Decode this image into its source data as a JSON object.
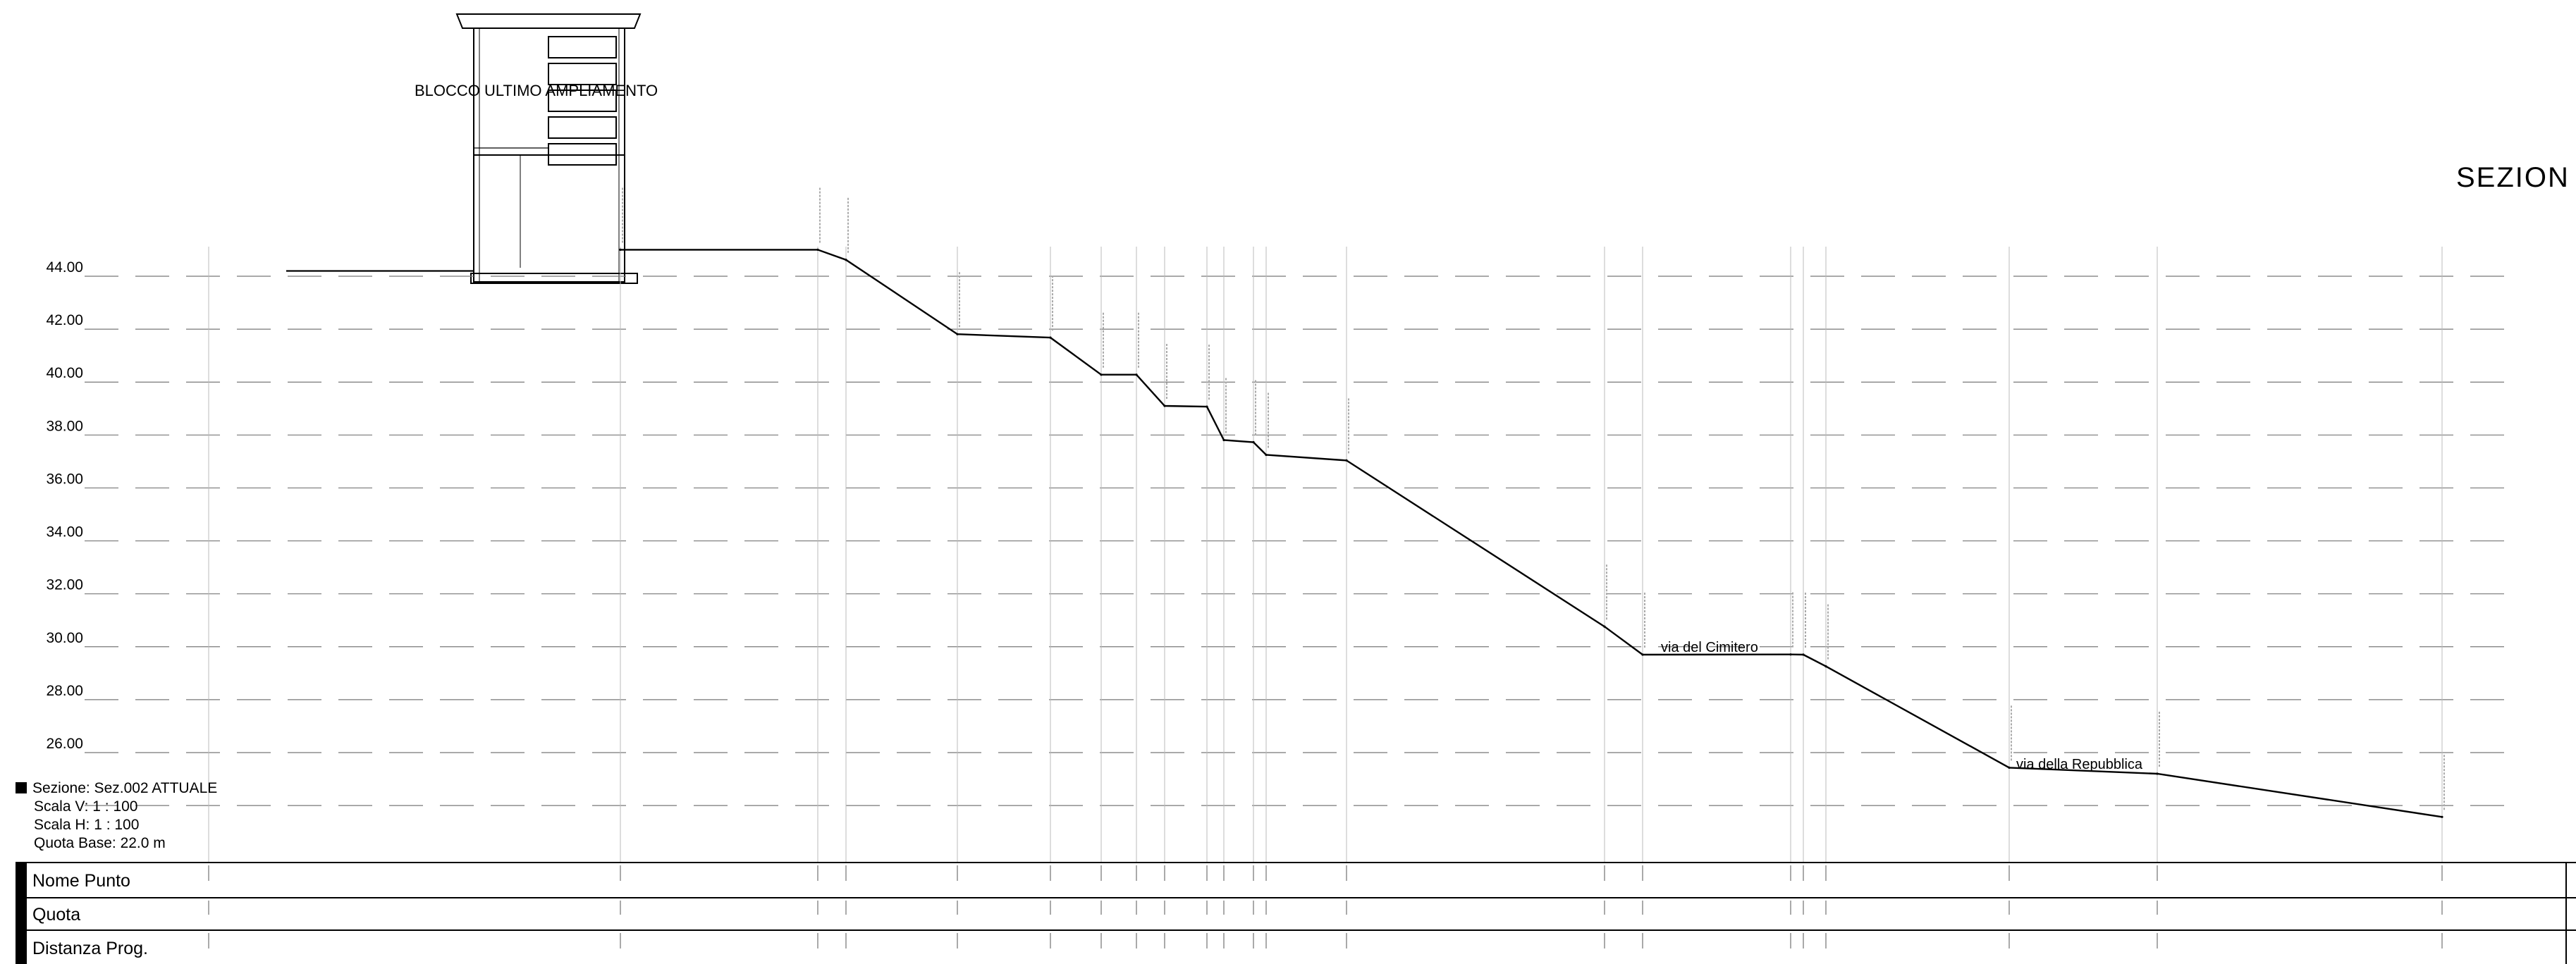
{
  "title": "SEZION",
  "building_label": "BLOCCO ULTIMO AMPLIAMENTO",
  "road_labels": [
    "via del Cimitero",
    "via della Repubblica"
  ],
  "info": {
    "sezione": "Sezione: Sez.002 ATTUALE",
    "scala_v": "Scala V: 1 : 100",
    "scala_h": "Scala H: 1 : 100",
    "quota_base": "Quota Base: 22.0 m"
  },
  "table_rows": [
    "Nome Punto",
    "Quota",
    "Distanza Prog."
  ],
  "chart_data": {
    "type": "line",
    "ylim": [
      24,
      46
    ],
    "y_ticks": [
      "44.00",
      "42.00",
      "40.00",
      "38.00",
      "36.00",
      "34.00",
      "32.00",
      "30.00",
      "28.00",
      "26.00"
    ],
    "series": [
      {
        "values": [
          45.0,
          45.0,
          44.62,
          41.81,
          41.68,
          40.28,
          40.28,
          39.1,
          39.07,
          37.81,
          37.73,
          37.25,
          37.04,
          30.76,
          29.7,
          29.71,
          29.7,
          29.26,
          25.43,
          25.2,
          23.57
        ]
      }
    ]
  }
}
